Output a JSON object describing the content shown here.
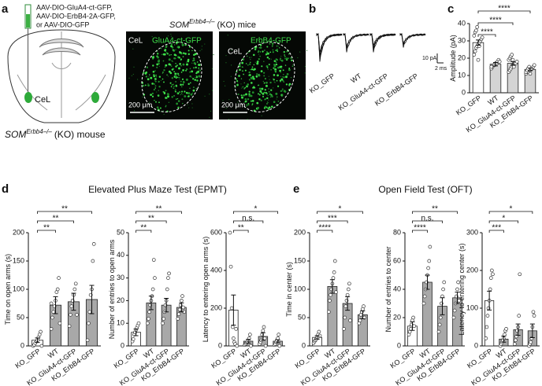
{
  "figure": {
    "panel_labels": [
      "a",
      "b",
      "c",
      "d",
      "e"
    ],
    "schematic": {
      "virus_lines": [
        "AAV-DIO-GluA4-ct-GFP,",
        "AAV-DIO-ErbB4-2A-GFP,",
        "or AAV-DIO-GFP"
      ],
      "region": "CeL",
      "mouse": {
        "gene": "SOM",
        "superscript": "Erbb4–/–",
        "suffix": "(KO) mouse"
      }
    },
    "micrographs": {
      "title": {
        "gene": "SOM",
        "superscript": "Erbb4–/–",
        "suffix": "(KO) mice"
      },
      "images": [
        {
          "label": "GluA4-ct-GFP",
          "region": "CeL",
          "scale_bar": "200 μm"
        },
        {
          "label": "ErbB4-GFP",
          "region": "CeL",
          "scale_bar": "200 μm"
        }
      ]
    },
    "traces": {
      "labels": [
        "KO_GFP",
        "WT",
        "KO_GluA4-ct-GFP",
        "KO_ErbB4-GFP"
      ],
      "scale_current": "10 pA",
      "scale_time": "2 ms"
    },
    "sections": [
      "Elevated Plus Maze Test (EPMT)",
      "Open Field Test (OFT)"
    ]
  },
  "chart_data": [
    {
      "type": "bar",
      "ylabel": "Amplitude (pA)",
      "categories": [
        "KO_GFP",
        "WT",
        "KO_GluA4-ct-GFP",
        "KO_ErbB4-GFP"
      ],
      "values": [
        29,
        16.5,
        17,
        13.5
      ],
      "errors": [
        1.5,
        1,
        1,
        0.7
      ],
      "colors": [
        "#ffffff",
        "#d4d4d4",
        "#d4d4d4",
        "#d4d4d4"
      ],
      "points": [
        [
          22,
          24,
          26,
          27,
          28,
          29,
          30,
          31,
          32,
          33,
          35,
          36,
          38,
          19,
          27
        ],
        [
          14,
          15,
          16,
          16,
          17,
          17,
          18,
          19,
          18,
          15
        ],
        [
          12,
          13,
          14,
          15,
          16,
          16,
          17,
          17,
          18,
          19,
          20,
          21,
          22,
          19,
          15
        ],
        [
          11,
          12,
          12,
          13,
          13,
          14,
          14,
          15,
          16,
          12,
          13,
          14,
          15,
          11,
          14
        ]
      ],
      "comparisons": [
        "****",
        "****",
        "****"
      ],
      "ylim": [
        0,
        40
      ],
      "yticks": [
        0,
        10,
        20,
        30,
        40
      ]
    },
    {
      "type": "bar",
      "ylabel": "Time on open arms (s)",
      "categories": [
        "KO_GFP",
        "WT",
        "KO_GluA4-ct-GFP",
        "KO_ErbB4-GFP"
      ],
      "values": [
        10,
        72,
        78,
        82
      ],
      "errors": [
        4,
        15,
        15,
        25
      ],
      "colors": [
        "#ffffff",
        "#a8a8a8",
        "#a8a8a8",
        "#a8a8a8"
      ],
      "points": [
        [
          0,
          2,
          5,
          8,
          10,
          15,
          20,
          25,
          0
        ],
        [
          30,
          50,
          60,
          70,
          80,
          95,
          100,
          120,
          40,
          75
        ],
        [
          35,
          55,
          70,
          80,
          90,
          100,
          110,
          55
        ],
        [
          10,
          40,
          60,
          90,
          100,
          150,
          180
        ]
      ],
      "comparisons": [
        "**",
        "**",
        "**"
      ],
      "ylim": [
        0,
        200
      ],
      "yticks": [
        0,
        50,
        100,
        150,
        200
      ]
    },
    {
      "type": "bar",
      "ylabel": "Number of entries to open arms",
      "categories": [
        "KO_GFP",
        "WT",
        "KO_GluA4-ct-GFP",
        "KO_ErbB4-GFP"
      ],
      "values": [
        6,
        19,
        18,
        17
      ],
      "errors": [
        1.5,
        3,
        3,
        2
      ],
      "colors": [
        "#ffffff",
        "#a8a8a8",
        "#a8a8a8",
        "#a8a8a8"
      ],
      "points": [
        [
          2,
          3,
          5,
          6,
          7,
          8,
          9,
          10
        ],
        [
          10,
          12,
          15,
          18,
          20,
          22,
          25,
          38,
          30
        ],
        [
          10,
          12,
          15,
          18,
          20,
          25,
          30,
          32
        ],
        [
          12,
          14,
          16,
          18,
          20,
          22,
          17,
          15
        ]
      ],
      "comparisons": [
        "**",
        "**",
        "**"
      ],
      "ylim": [
        0,
        50
      ],
      "yticks": [
        0,
        10,
        20,
        30,
        40,
        50
      ]
    },
    {
      "type": "bar",
      "ylabel": "Latency to entering open arms (s)",
      "categories": [
        "KO_GFP",
        "WT",
        "KO_GluA4-ct-GFP",
        "KO_ErbB4-GFP"
      ],
      "values": [
        190,
        25,
        50,
        25
      ],
      "errors": [
        80,
        10,
        20,
        8
      ],
      "colors": [
        "#ffffff",
        "#a8a8a8",
        "#a8a8a8",
        "#a8a8a8"
      ],
      "points": [
        [
          600,
          420,
          200,
          100,
          40,
          20,
          10,
          90,
          0
        ],
        [
          5,
          10,
          15,
          20,
          30,
          40,
          60,
          0
        ],
        [
          10,
          20,
          30,
          60,
          80,
          100,
          40,
          0
        ],
        [
          5,
          10,
          20,
          30,
          40,
          60,
          0
        ]
      ],
      "comparisons": [
        "**",
        "n.s.",
        "*"
      ],
      "ylim": [
        0,
        600
      ],
      "yticks": [
        0,
        200,
        400,
        600
      ]
    },
    {
      "type": "bar",
      "ylabel": "Time in center (s)",
      "categories": [
        "KO_GFP",
        "WT",
        "KO_GluA4-ct-GFP",
        "KO_ErbB4-GFP"
      ],
      "values": [
        15,
        105,
        75,
        55
      ],
      "errors": [
        3,
        12,
        12,
        7
      ],
      "colors": [
        "#ffffff",
        "#a8a8a8",
        "#a8a8a8",
        "#a8a8a8"
      ],
      "points": [
        [
          5,
          8,
          10,
          12,
          15,
          20,
          25,
          18
        ],
        [
          60,
          80,
          90,
          100,
          110,
          120,
          130,
          150,
          95
        ],
        [
          30,
          50,
          70,
          80,
          90,
          100,
          110,
          45
        ],
        [
          40,
          45,
          55,
          60,
          65,
          70,
          50
        ]
      ],
      "comparisons": [
        "****",
        "***",
        "*"
      ],
      "ylim": [
        0,
        200
      ],
      "yticks": [
        0,
        50,
        100,
        150,
        200
      ]
    },
    {
      "type": "bar",
      "ylabel": "Number of entries to center",
      "categories": [
        "KO_GFP",
        "WT",
        "KO_GluA4-ct-GFP",
        "KO_ErbB4-GFP"
      ],
      "values": [
        14,
        45,
        28,
        34
      ],
      "errors": [
        3,
        5,
        6,
        4
      ],
      "colors": [
        "#ffffff",
        "#a8a8a8",
        "#a8a8a8",
        "#a8a8a8"
      ],
      "points": [
        [
          8,
          10,
          12,
          15,
          18,
          20,
          14
        ],
        [
          30,
          35,
          40,
          45,
          50,
          55,
          60,
          70
        ],
        [
          10,
          15,
          20,
          30,
          35,
          40,
          45
        ],
        [
          20,
          25,
          30,
          35,
          40,
          45,
          32
        ]
      ],
      "comparisons": [
        "****",
        "n.s.",
        "**"
      ],
      "ylim": [
        0,
        80
      ],
      "yticks": [
        0,
        20,
        40,
        60,
        80
      ]
    },
    {
      "type": "bar",
      "ylabel": "Latency to entering center (s)",
      "categories": [
        "KO_GFP",
        "WT",
        "KO_GluA4-ct-GFP",
        "KO_ErbB4-GFP"
      ],
      "values": [
        120,
        18,
        43,
        40
      ],
      "errors": [
        25,
        8,
        15,
        18
      ],
      "colors": [
        "#ffffff",
        "#a8a8a8",
        "#a8a8a8",
        "#a8a8a8"
      ],
      "points": [
        [
          20,
          50,
          80,
          100,
          120,
          150,
          180,
          200,
          190
        ],
        [
          0,
          5,
          10,
          15,
          20,
          30,
          40,
          45
        ],
        [
          5,
          15,
          25,
          40,
          50,
          80,
          190
        ],
        [
          0,
          5,
          10,
          20,
          50,
          90,
          80
        ]
      ],
      "comparisons": [
        "***",
        "*",
        "*"
      ],
      "ylim": [
        0,
        300
      ],
      "yticks": [
        0,
        100,
        200,
        300
      ]
    }
  ]
}
